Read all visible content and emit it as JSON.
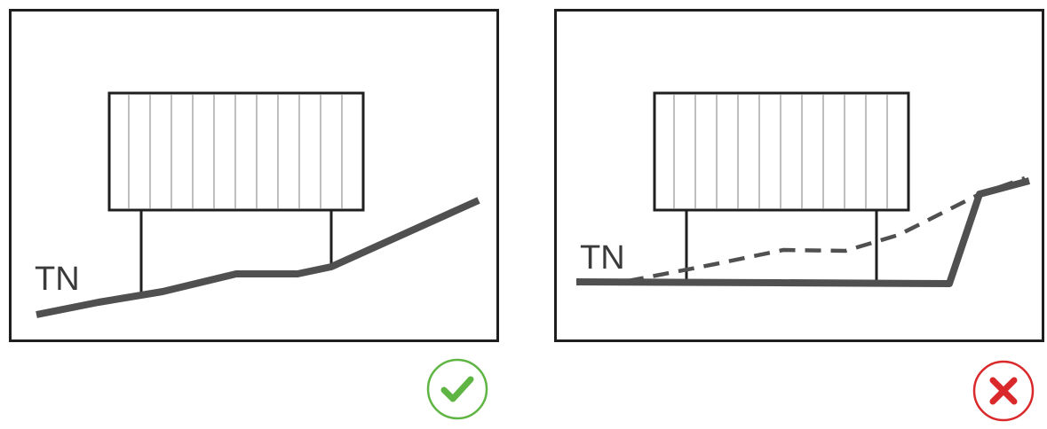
{
  "left_panel": {
    "ground_label": "TN",
    "verdict_icon": "check-icon",
    "verdict_color": "#5fb543"
  },
  "right_panel": {
    "ground_label": "TN",
    "verdict_icon": "cross-icon",
    "verdict_color": "#d9292b"
  },
  "colors": {
    "frame": "#1f1f1f",
    "ground": "#505050",
    "building_hatch": "#9a9a9a"
  }
}
